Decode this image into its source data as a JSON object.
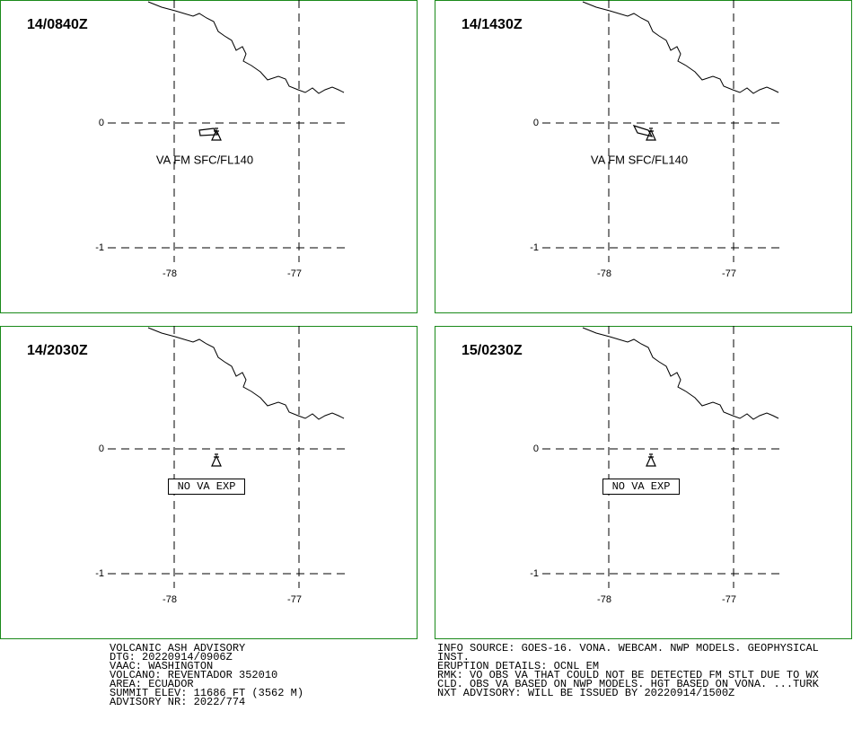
{
  "panels": [
    {
      "time": "14/0840Z",
      "lat_labels": [
        "0",
        "-1"
      ],
      "lon_labels": [
        "-78",
        "-77"
      ],
      "annotation": "VA FM SFC/FL140"
    },
    {
      "time": "14/1430Z",
      "lat_labels": [
        "0",
        "-1"
      ],
      "lon_labels": [
        "-78",
        "-77"
      ],
      "annotation": "VA FM SFC/FL140"
    },
    {
      "time": "14/2030Z",
      "lat_labels": [
        "0",
        "-1"
      ],
      "lon_labels": [
        "-78",
        "-77"
      ],
      "annotation": "NO VA EXP"
    },
    {
      "time": "15/0230Z",
      "lat_labels": [
        "0",
        "-1"
      ],
      "lon_labels": [
        "-78",
        "-77"
      ],
      "annotation": "NO VA EXP"
    }
  ],
  "footer": {
    "left": [
      "VOLCANIC ASH ADVISORY",
      "DTG: 20220914/0906Z",
      "VAAC: WASHINGTON",
      "VOLCANO: REVENTADOR 352010",
      "AREA: ECUADOR",
      "SUMMIT ELEV: 11686 FT (3562 M)",
      "ADVISORY NR: 2022/774"
    ],
    "right": [
      "INFO SOURCE: GOES-16. VONA. WEBCAM. NWP MODELS. GEOPHYSICAL",
      "INST.",
      "ERUPTION DETAILS: OCNL EM",
      "RMK: VO OBS VA THAT COULD NOT BE DETECTED FM STLT DUE TO WX",
      "CLD. OBS VA BASED ON NWP MODELS. HGT BASED ON VONA. ...TURK",
      "NXT ADVISORY: WILL BE ISSUED BY 20220914/1500Z"
    ]
  }
}
